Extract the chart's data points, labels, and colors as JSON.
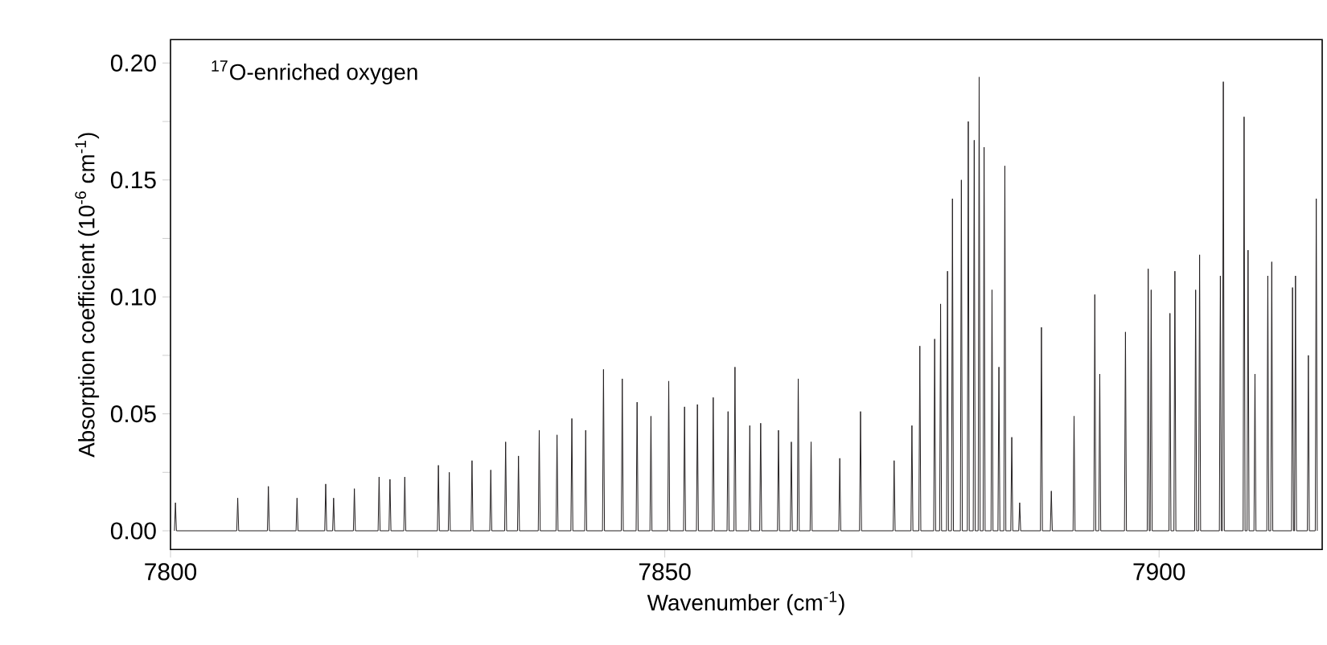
{
  "chart_data": {
    "type": "line",
    "xlabel": "Wavenumber (cm$^{-1}$)",
    "ylabel": "Absorption coefficient (10$^{-6}$ cm$^{-1}$)",
    "annotations": [
      "$^{17}$O-enriched oxygen"
    ],
    "xlim": [
      7800,
      7916.5
    ],
    "ylim": [
      -0.008,
      0.21
    ],
    "xticks": [
      7800,
      {
        "value": 7825,
        "label": null
      },
      7850,
      {
        "value": 7875,
        "label": null
      },
      7900
    ],
    "yticks": [
      {
        "value": 0,
        "label": "0.00"
      },
      {
        "value": 0.025,
        "label": null
      },
      {
        "value": 0.05,
        "label": "0.05"
      },
      {
        "value": 0.075,
        "label": null
      },
      {
        "value": 0.1,
        "label": "0.10"
      },
      {
        "value": 0.125,
        "label": null
      },
      {
        "value": 0.15,
        "label": "0.15"
      },
      {
        "value": 0.175,
        "label": null
      },
      {
        "value": 0.2,
        "label": "0.20"
      }
    ],
    "grid": false,
    "marker": "none",
    "line_style": "solid",
    "series": [
      {
        "color": "#231f20",
        "x": [
          7800.4,
          7800.5,
          7800.6,
          7806.7,
          7806.8,
          7806.9,
          7809.8,
          7809.9,
          7810.0,
          7812.7,
          7812.8,
          7812.9,
          7815.6,
          7815.7,
          7815.8,
          7816.4,
          7816.5,
          7816.6,
          7818.5,
          7818.6,
          7818.7,
          7821.0,
          7821.1,
          7821.2,
          7822.1,
          7822.2,
          7822.3,
          7823.6,
          7823.7,
          7823.8,
          7827.0,
          7827.1,
          7827.2,
          7828.1,
          7828.2,
          7828.3,
          7830.4,
          7830.5,
          7830.6,
          7832.3,
          7832.4,
          7832.5,
          7833.8,
          7833.9,
          7834.0,
          7835.1,
          7835.2,
          7835.3,
          7837.2,
          7837.3,
          7837.4,
          7839.0,
          7839.1,
          7839.2,
          7840.5,
          7840.6,
          7840.7,
          7841.9,
          7842.0,
          7842.1,
          7843.7,
          7843.8,
          7843.9,
          7845.6,
          7845.7,
          7845.8,
          7847.1,
          7847.2,
          7847.3,
          7848.5,
          7848.6,
          7848.7,
          7850.3,
          7850.4,
          7850.5,
          7851.9,
          7852.0,
          7852.1,
          7853.2,
          7853.3,
          7853.4,
          7854.8,
          7854.9,
          7855.0,
          7856.3,
          7856.4,
          7856.5,
          7857.0,
          7857.1,
          7857.2,
          7858.5,
          7858.6,
          7858.7,
          7859.6,
          7859.7,
          7859.8,
          7861.4,
          7861.5,
          7861.6,
          7862.7,
          7862.8,
          7862.9,
          7863.4,
          7863.5,
          7863.6,
          7864.7,
          7864.8,
          7864.9,
          7867.6,
          7867.7,
          7867.8,
          7869.7,
          7869.8,
          7869.9,
          7873.1,
          7873.2,
          7873.3,
          7874.9,
          7875.0,
          7875.1,
          7875.7,
          7875.8,
          7875.9,
          7877.2,
          7877.3,
          7877.4,
          7877.8,
          7877.9,
          7878.0,
          7878.5,
          7878.6,
          7878.7,
          7879.0,
          7879.1,
          7879.2,
          7879.9,
          7880.0,
          7880.1,
          7880.6,
          7880.7,
          7880.8,
          7881.2,
          7881.3,
          7881.4,
          7881.7,
          7881.8,
          7881.9,
          7882.2,
          7882.3,
          7882.4,
          7883.0,
          7883.1,
          7883.2,
          7883.7,
          7883.8,
          7883.9,
          7884.3,
          7884.4,
          7884.5,
          7885.0,
          7885.1,
          7885.2,
          7885.8,
          7885.9,
          7886.0,
          7888.0,
          7888.1,
          7888.2,
          7889.0,
          7889.1,
          7889.2,
          7891.3,
          7891.4,
          7891.5,
          7893.4,
          7893.5,
          7893.6,
          7893.9,
          7894.0,
          7894.1,
          7896.5,
          7896.6,
          7896.7,
          7898.8,
          7898.9,
          7899.0,
          7899.1,
          7899.2,
          7899.3,
          7901.0,
          7901.1,
          7901.2,
          7901.5,
          7901.6,
          7901.7,
          7903.6,
          7903.7,
          7903.8,
          7904.0,
          7904.1,
          7904.2,
          7906.1,
          7906.2,
          7906.3,
          7906.4,
          7906.5,
          7906.6,
          7908.5,
          7908.6,
          7908.7,
          7908.9,
          7909.0,
          7909.1,
          7909.6,
          7909.7,
          7909.8,
          7910.9,
          7911.0,
          7911.1,
          7911.3,
          7911.4,
          7911.5,
          7913.4,
          7913.5,
          7913.6,
          7913.7,
          7913.8,
          7913.9,
          7915.0,
          7915.1,
          7915.2,
          7915.8,
          7915.9,
          7916.0
        ],
        "values": [
          0,
          0.012,
          0,
          0,
          0.014,
          0,
          0,
          0.019,
          0,
          0,
          0.014,
          0,
          0,
          0.02,
          0,
          0,
          0.014,
          0,
          0,
          0.018,
          0,
          0,
          0.023,
          0,
          0,
          0.022,
          0,
          0,
          0.023,
          0,
          0,
          0.028,
          0,
          0,
          0.025,
          0,
          0,
          0.03,
          0,
          0,
          0.026,
          0,
          0,
          0.038,
          0,
          0,
          0.032,
          0,
          0,
          0.043,
          0,
          0,
          0.041,
          0,
          0,
          0.048,
          0,
          0,
          0.043,
          0,
          0,
          0.069,
          0,
          0,
          0.065,
          0,
          0,
          0.055,
          0,
          0,
          0.049,
          0,
          0,
          0.064,
          0,
          0,
          0.053,
          0,
          0,
          0.054,
          0,
          0,
          0.057,
          0,
          0,
          0.051,
          0,
          0,
          0.07,
          0,
          0,
          0.045,
          0,
          0,
          0.046,
          0,
          0,
          0.043,
          0,
          0,
          0.038,
          0,
          0,
          0.065,
          0,
          0,
          0.038,
          0,
          0,
          0.031,
          0,
          0,
          0.051,
          0,
          0,
          0.03,
          0,
          0,
          0.045,
          0,
          0,
          0.079,
          0,
          0,
          0.082,
          0,
          0,
          0.097,
          0,
          0,
          0.111,
          0,
          0,
          0.142,
          0,
          0,
          0.15,
          0,
          0,
          0.175,
          0,
          0,
          0.167,
          0,
          0,
          0.194,
          0,
          0,
          0.164,
          0,
          0,
          0.103,
          0,
          0,
          0.07,
          0,
          0,
          0.156,
          0,
          0,
          0.04,
          0,
          0,
          0.012,
          0,
          0,
          0.087,
          0,
          0,
          0.017,
          0,
          0,
          0.049,
          0,
          0,
          0.101,
          0,
          0,
          0.067,
          0,
          0,
          0.085,
          0,
          0,
          0.112,
          0,
          0,
          0.103,
          0,
          0,
          0.093,
          0,
          0,
          0.111,
          0,
          0,
          0.103,
          0,
          0,
          0.118,
          0,
          0,
          0.109,
          0,
          0,
          0.192,
          0,
          0,
          0.177,
          0,
          0,
          0.12,
          0,
          0,
          0.067,
          0,
          0,
          0.109,
          0,
          0,
          0.115,
          0,
          0,
          0.104,
          0,
          0,
          0.109,
          0,
          0,
          0.075,
          0,
          0,
          0.142,
          0
        ]
      }
    ]
  }
}
